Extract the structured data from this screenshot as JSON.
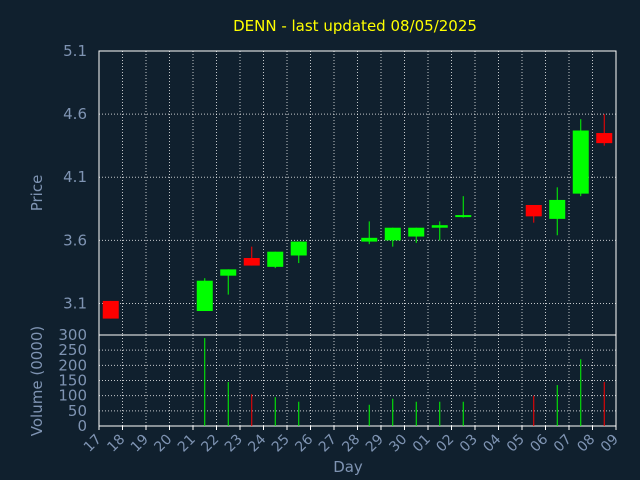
{
  "chart_data": {
    "type": "candlestick",
    "title": "DENN - last updated 08/05/2025",
    "xlabel": "Day",
    "price_panel": {
      "ylabel": "Price",
      "ylim": [
        2.85,
        5.1
      ],
      "yticks": [
        "3.1",
        "3.6",
        "4.1",
        "4.6",
        "5.1"
      ],
      "grid": true
    },
    "volume_panel": {
      "ylabel": "Volume (0000)",
      "ylim": [
        0,
        300
      ],
      "yticks": [
        "0",
        "50",
        "100",
        "150",
        "200",
        "250",
        "300"
      ],
      "grid": true
    },
    "x_ticks": [
      "17",
      "18",
      "19",
      "20",
      "21",
      "22",
      "23",
      "24",
      "25",
      "26",
      "27",
      "28",
      "29",
      "30",
      "01",
      "02",
      "03",
      "04",
      "05",
      "06",
      "07",
      "08",
      "09"
    ],
    "candles": [
      {
        "x": 0,
        "open": 3.12,
        "close": 2.98,
        "high": 3.12,
        "low": 2.98,
        "volume": 0
      },
      {
        "x": 4,
        "open": 3.04,
        "close": 3.28,
        "high": 3.3,
        "low": 3.04,
        "volume": 290
      },
      {
        "x": 5,
        "open": 3.32,
        "close": 3.37,
        "high": 3.37,
        "low": 3.17,
        "volume": 145
      },
      {
        "x": 6,
        "open": 3.46,
        "close": 3.4,
        "high": 3.55,
        "low": 3.4,
        "volume": 105
      },
      {
        "x": 7,
        "open": 3.39,
        "close": 3.51,
        "high": 3.51,
        "low": 3.38,
        "volume": 95
      },
      {
        "x": 8,
        "open": 3.48,
        "close": 3.59,
        "high": 3.59,
        "low": 3.42,
        "volume": 80
      },
      {
        "x": 11,
        "open": 3.59,
        "close": 3.62,
        "high": 3.75,
        "low": 3.57,
        "volume": 70
      },
      {
        "x": 12,
        "open": 3.6,
        "close": 3.7,
        "high": 3.7,
        "low": 3.55,
        "volume": 90
      },
      {
        "x": 13,
        "open": 3.63,
        "close": 3.7,
        "high": 3.7,
        "low": 3.58,
        "volume": 80
      },
      {
        "x": 14,
        "open": 3.7,
        "close": 3.72,
        "high": 3.75,
        "low": 3.6,
        "volume": 80
      },
      {
        "x": 15,
        "open": 3.79,
        "close": 3.8,
        "high": 3.95,
        "low": 3.78,
        "volume": 80
      },
      {
        "x": 18,
        "open": 3.88,
        "close": 3.79,
        "high": 3.88,
        "low": 3.74,
        "volume": 100
      },
      {
        "x": 19,
        "open": 3.77,
        "close": 3.92,
        "high": 4.02,
        "low": 3.64,
        "volume": 135
      },
      {
        "x": 20,
        "open": 3.97,
        "close": 4.47,
        "high": 4.56,
        "low": 3.95,
        "volume": 220
      },
      {
        "x": 21,
        "open": 4.45,
        "close": 4.37,
        "high": 4.6,
        "low": 4.35,
        "volume": 145
      }
    ],
    "colors": {
      "up": "#00ff00",
      "down": "#ff0000",
      "background": "#10202e",
      "axis_text": "#7f94b3",
      "title": "#ffff00",
      "grid": "#ffffff"
    }
  }
}
